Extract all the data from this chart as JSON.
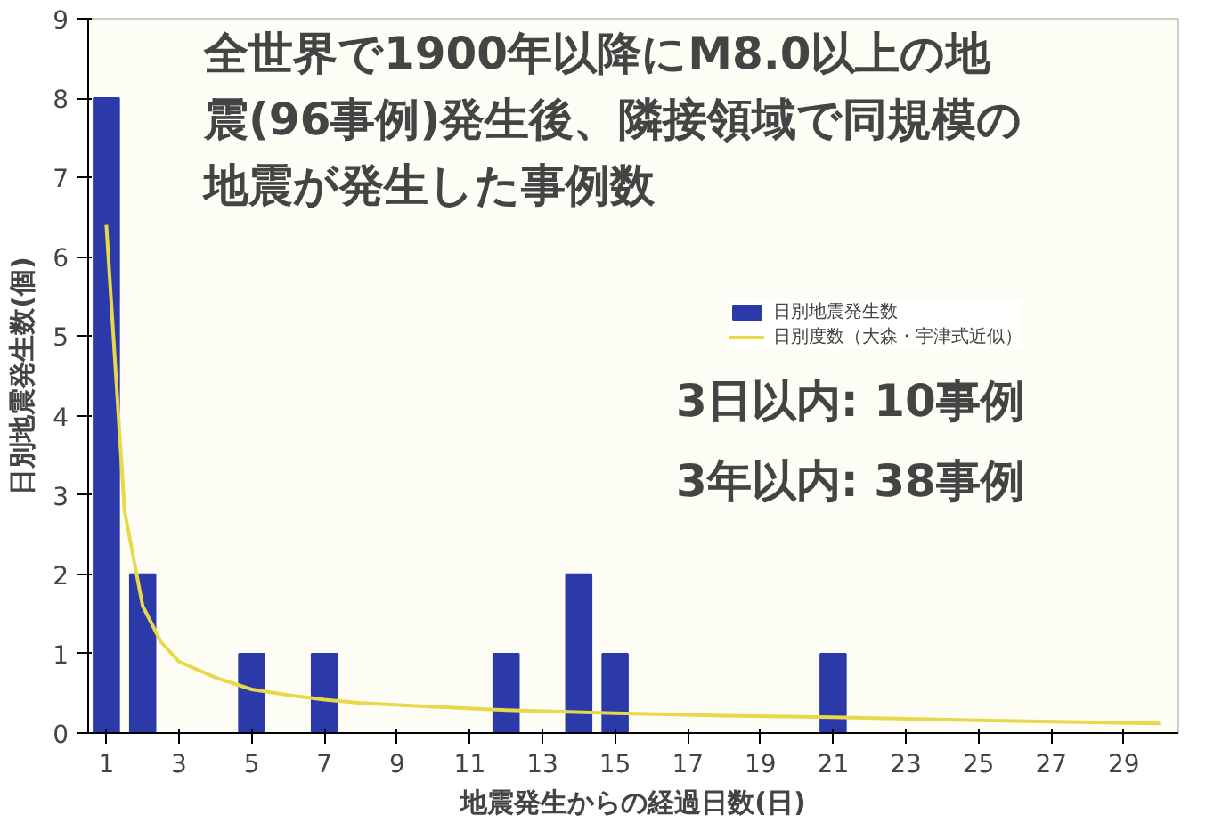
{
  "chart_data": {
    "type": "bar",
    "title": "全世界で1900年以降にM8.0以上の地震(96事例)発生後、隣接領域で同規模の地震が発生した事例数",
    "xlabel": "地震発生からの経過日数(日)",
    "ylabel": "日別地震発生数(個)",
    "series": [
      {
        "name": "日別地震発生数",
        "color": "#2b3aa8",
        "x": [
          1,
          2,
          5,
          7,
          12,
          14,
          15,
          21
        ],
        "values": [
          8,
          2,
          1,
          1,
          1,
          2,
          1,
          1
        ]
      },
      {
        "name": "日別度数（大森・宇津式近似）",
        "type": "line",
        "color": "#e8d84a",
        "x": [
          1,
          1.5,
          2,
          2.5,
          3,
          4,
          5,
          6,
          7,
          8,
          10,
          12,
          15,
          18,
          21,
          25,
          30
        ],
        "values": [
          6.4,
          2.8,
          1.6,
          1.15,
          0.9,
          0.7,
          0.55,
          0.48,
          0.42,
          0.38,
          0.33,
          0.29,
          0.25,
          0.22,
          0.2,
          0.16,
          0.12
        ]
      }
    ],
    "xlim": [
      0.5,
      30.5
    ],
    "xticks": [
      1,
      3,
      5,
      7,
      9,
      11,
      13,
      15,
      17,
      19,
      21,
      23,
      25,
      27,
      29
    ],
    "ylim": [
      0,
      9
    ],
    "yticks": [
      0,
      1,
      2,
      3,
      4,
      5,
      6,
      7,
      8,
      9
    ],
    "annotations": [
      "3日以内: 10事例",
      "3年以内: 38事例"
    ],
    "legend": "right",
    "grid": false
  }
}
